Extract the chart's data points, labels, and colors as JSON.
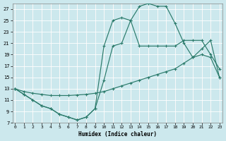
{
  "xlabel": "Humidex (Indice chaleur)",
  "xlim": [
    -0.3,
    23.3
  ],
  "ylim": [
    7,
    28
  ],
  "xticks": [
    0,
    1,
    2,
    3,
    4,
    5,
    6,
    7,
    8,
    9,
    10,
    11,
    12,
    13,
    14,
    15,
    16,
    17,
    18,
    19,
    20,
    21,
    22,
    23
  ],
  "yticks": [
    7,
    9,
    11,
    13,
    15,
    17,
    19,
    21,
    23,
    25,
    27
  ],
  "bg_color": "#cce8ed",
  "grid_color": "#b8d8e0",
  "line_color": "#2a7a6a",
  "line1_x": [
    0,
    1,
    2,
    3,
    4,
    5,
    6,
    7,
    8,
    9,
    10,
    11,
    12,
    13,
    14,
    15,
    16,
    17,
    18,
    19,
    20,
    21,
    22,
    23
  ],
  "line1_y": [
    13,
    12,
    11,
    10,
    9.5,
    8.5,
    8.0,
    7.5,
    8.0,
    9.5,
    14.5,
    20.5,
    21.0,
    25.0,
    20.5,
    20.5,
    20.5,
    20.5,
    20.5,
    21.5,
    21.5,
    21.5,
    19.0,
    16.5
  ],
  "line2_x": [
    0,
    1,
    2,
    3,
    4,
    5,
    6,
    7,
    8,
    9,
    10,
    11,
    12,
    13,
    14,
    15,
    16,
    17,
    18,
    19,
    20,
    21,
    22,
    23
  ],
  "line2_y": [
    13,
    12.5,
    12.2,
    12.0,
    11.8,
    11.8,
    11.8,
    11.9,
    12.0,
    12.2,
    12.5,
    13.0,
    13.5,
    14.0,
    14.5,
    15.0,
    15.5,
    16.0,
    16.5,
    17.5,
    18.5,
    20.0,
    21.5,
    15.0
  ],
  "line3_x": [
    0,
    1,
    2,
    3,
    4,
    5,
    6,
    7,
    8,
    9,
    10,
    11,
    12,
    13,
    14,
    15,
    16,
    17,
    18,
    19,
    20,
    21,
    22,
    23
  ],
  "line3_y": [
    13,
    12,
    11,
    10,
    9.5,
    8.5,
    8.0,
    7.5,
    8.0,
    9.5,
    20.5,
    25.0,
    25.5,
    25.0,
    27.5,
    28.0,
    27.5,
    27.5,
    24.5,
    21.0,
    18.5,
    19.0,
    18.5,
    15.0
  ]
}
